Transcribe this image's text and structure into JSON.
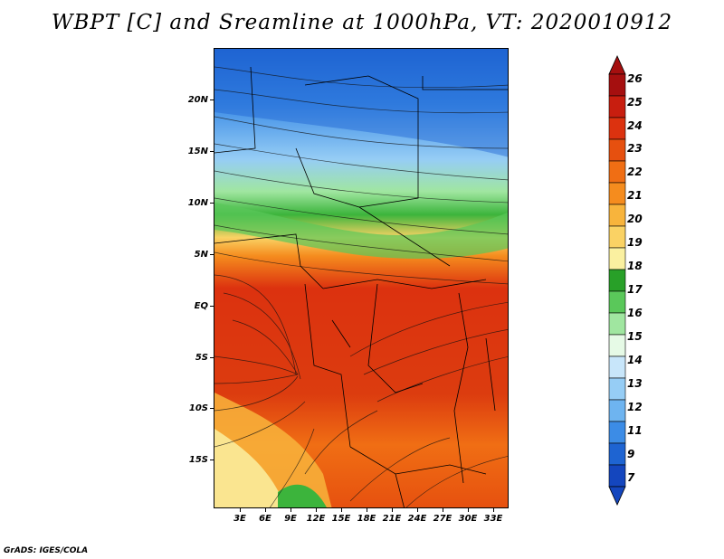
{
  "title": "WBPT [C] and Sreamline at 1000hPa, VT: 2020010912",
  "credit": "GrADS: IGES/COLA",
  "map": {
    "lat_labels": [
      "20N",
      "15N",
      "10N",
      "5N",
      "EQ",
      "5S",
      "10S",
      "15S"
    ],
    "lon_labels": [
      "3E",
      "6E",
      "9E",
      "12E",
      "15E",
      "18E",
      "21E",
      "24E",
      "27E",
      "30E",
      "33E"
    ]
  },
  "colorbar": {
    "labels": [
      "26",
      "25",
      "24",
      "23",
      "22",
      "21",
      "20",
      "19",
      "18",
      "17",
      "16",
      "15",
      "14",
      "13",
      "12",
      "11",
      "9",
      "7"
    ],
    "colors": [
      "#a50f0f",
      "#c81e0f",
      "#dc320f",
      "#e6500f",
      "#f06e14",
      "#f58c1e",
      "#f8b43c",
      "#fad264",
      "#faf0a0",
      "#28a028",
      "#5ac85a",
      "#a0e6a0",
      "#e6fae6",
      "#c8e6fa",
      "#96cdf5",
      "#6eb4f0",
      "#3c8ce6",
      "#1e64d2",
      "#1446be"
    ],
    "top_color": "#a50f0f",
    "bottom_color": "#1446be"
  }
}
